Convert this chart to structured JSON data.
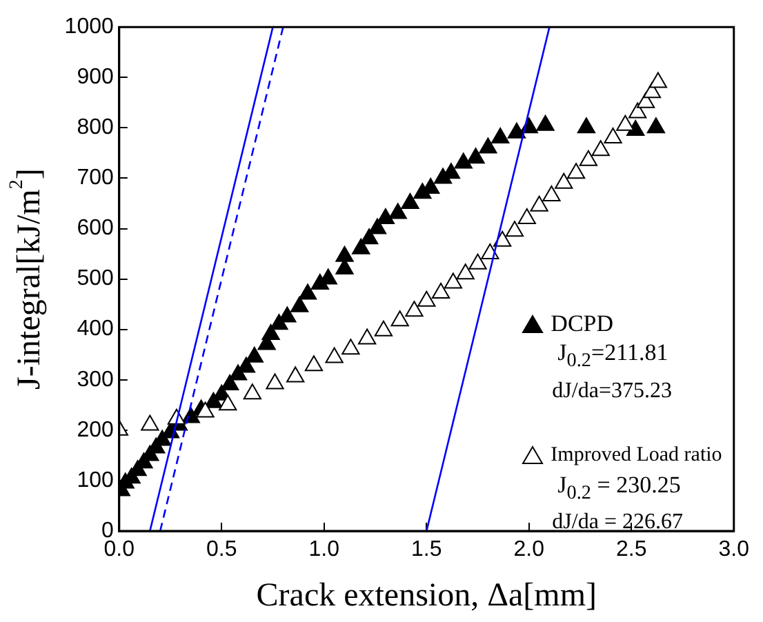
{
  "chart_data": {
    "type": "scatter",
    "xlabel": "Crack extension, Δa[mm]",
    "ylabel": "J-integral[kJ/m$^{2}$]",
    "xlim": [
      0,
      3
    ],
    "ylim": [
      0,
      1000
    ],
    "xticks": [
      {
        "value": 0,
        "label": "0.0"
      },
      {
        "value": 0.5,
        "label": "0.5"
      },
      {
        "value": 1,
        "label": "1.0"
      },
      {
        "value": 1.5,
        "label": "1.5"
      },
      {
        "value": 2,
        "label": "2.0"
      },
      {
        "value": 2.5,
        "label": "2.5"
      },
      {
        "value": 3,
        "label": "3.0"
      }
    ],
    "yticks": [
      0,
      100,
      200,
      300,
      400,
      500,
      600,
      700,
      800,
      900,
      1000
    ],
    "grid": false,
    "legend": "right",
    "marker": "triangle",
    "annotations": [
      "J$_{0.2}$=211.81",
      "dJ/da=375.23",
      "J$_{0.2}$ = 230.25",
      "dJ/da = 226.67"
    ],
    "series": [
      {
        "name": "DCPD",
        "color": "#000000",
        "x": [
          0.01,
          0.03,
          0.06,
          0.09,
          0.12,
          0.15,
          0.18,
          0.21,
          0.25,
          0.29,
          0.35,
          0.4,
          0.46,
          0.5,
          0.54,
          0.58,
          0.62,
          0.66,
          0.72,
          0.74,
          0.78,
          0.82,
          0.88,
          0.92,
          0.98,
          1.02,
          1.1,
          1.1,
          1.18,
          1.22,
          1.26,
          1.3,
          1.36,
          1.42,
          1.48,
          1.52,
          1.58,
          1.62,
          1.68,
          1.74,
          1.8,
          1.86,
          1.94,
          2.0,
          2.08,
          2.28,
          2.52,
          2.62
        ],
        "values": [
          80,
          95,
          105,
          120,
          135,
          150,
          165,
          180,
          195,
          210,
          225,
          240,
          255,
          270,
          290,
          310,
          325,
          345,
          370,
          390,
          410,
          425,
          445,
          470,
          490,
          500,
          545,
          520,
          560,
          580,
          600,
          620,
          630,
          650,
          670,
          680,
          700,
          710,
          730,
          740,
          760,
          780,
          790,
          800,
          805,
          800,
          795,
          800
        ]
      },
      {
        "name": "Improved Load ratio",
        "color": "#ffffff",
        "x": [
          0,
          0.15,
          0.28,
          0.42,
          0.53,
          0.65,
          0.76,
          0.86,
          0.95,
          1.05,
          1.13,
          1.21,
          1.29,
          1.37,
          1.44,
          1.5,
          1.57,
          1.63,
          1.69,
          1.75,
          1.81,
          1.87,
          1.93,
          1.99,
          2.05,
          2.11,
          2.17,
          2.23,
          2.29,
          2.35,
          2.41,
          2.47,
          2.53,
          2.57,
          2.6,
          2.63
        ],
        "values": [
          200,
          210,
          222,
          236,
          250,
          272,
          292,
          306,
          328,
          344,
          361,
          381,
          397,
          417,
          436,
          456,
          472,
          492,
          510,
          530,
          550,
          575,
          595,
          620,
          645,
          665,
          690,
          710,
          735,
          755,
          780,
          805,
          830,
          850,
          870,
          890
        ]
      },
      {
        "type": "line",
        "color": "#0000ff",
        "marker": "none",
        "line_style": "solid",
        "x": [
          0.15,
          0.75
        ],
        "values": [
          0,
          1000
        ]
      },
      {
        "type": "line",
        "color": "#0000ff",
        "marker": "none",
        "line_style": "dashed",
        "x": [
          0.2,
          0.8
        ],
        "values": [
          0,
          1000
        ]
      },
      {
        "type": "line",
        "color": "#0000ff",
        "marker": "none",
        "line_style": "solid",
        "x": [
          1.5,
          2.1
        ],
        "values": [
          0,
          1000
        ]
      }
    ]
  }
}
